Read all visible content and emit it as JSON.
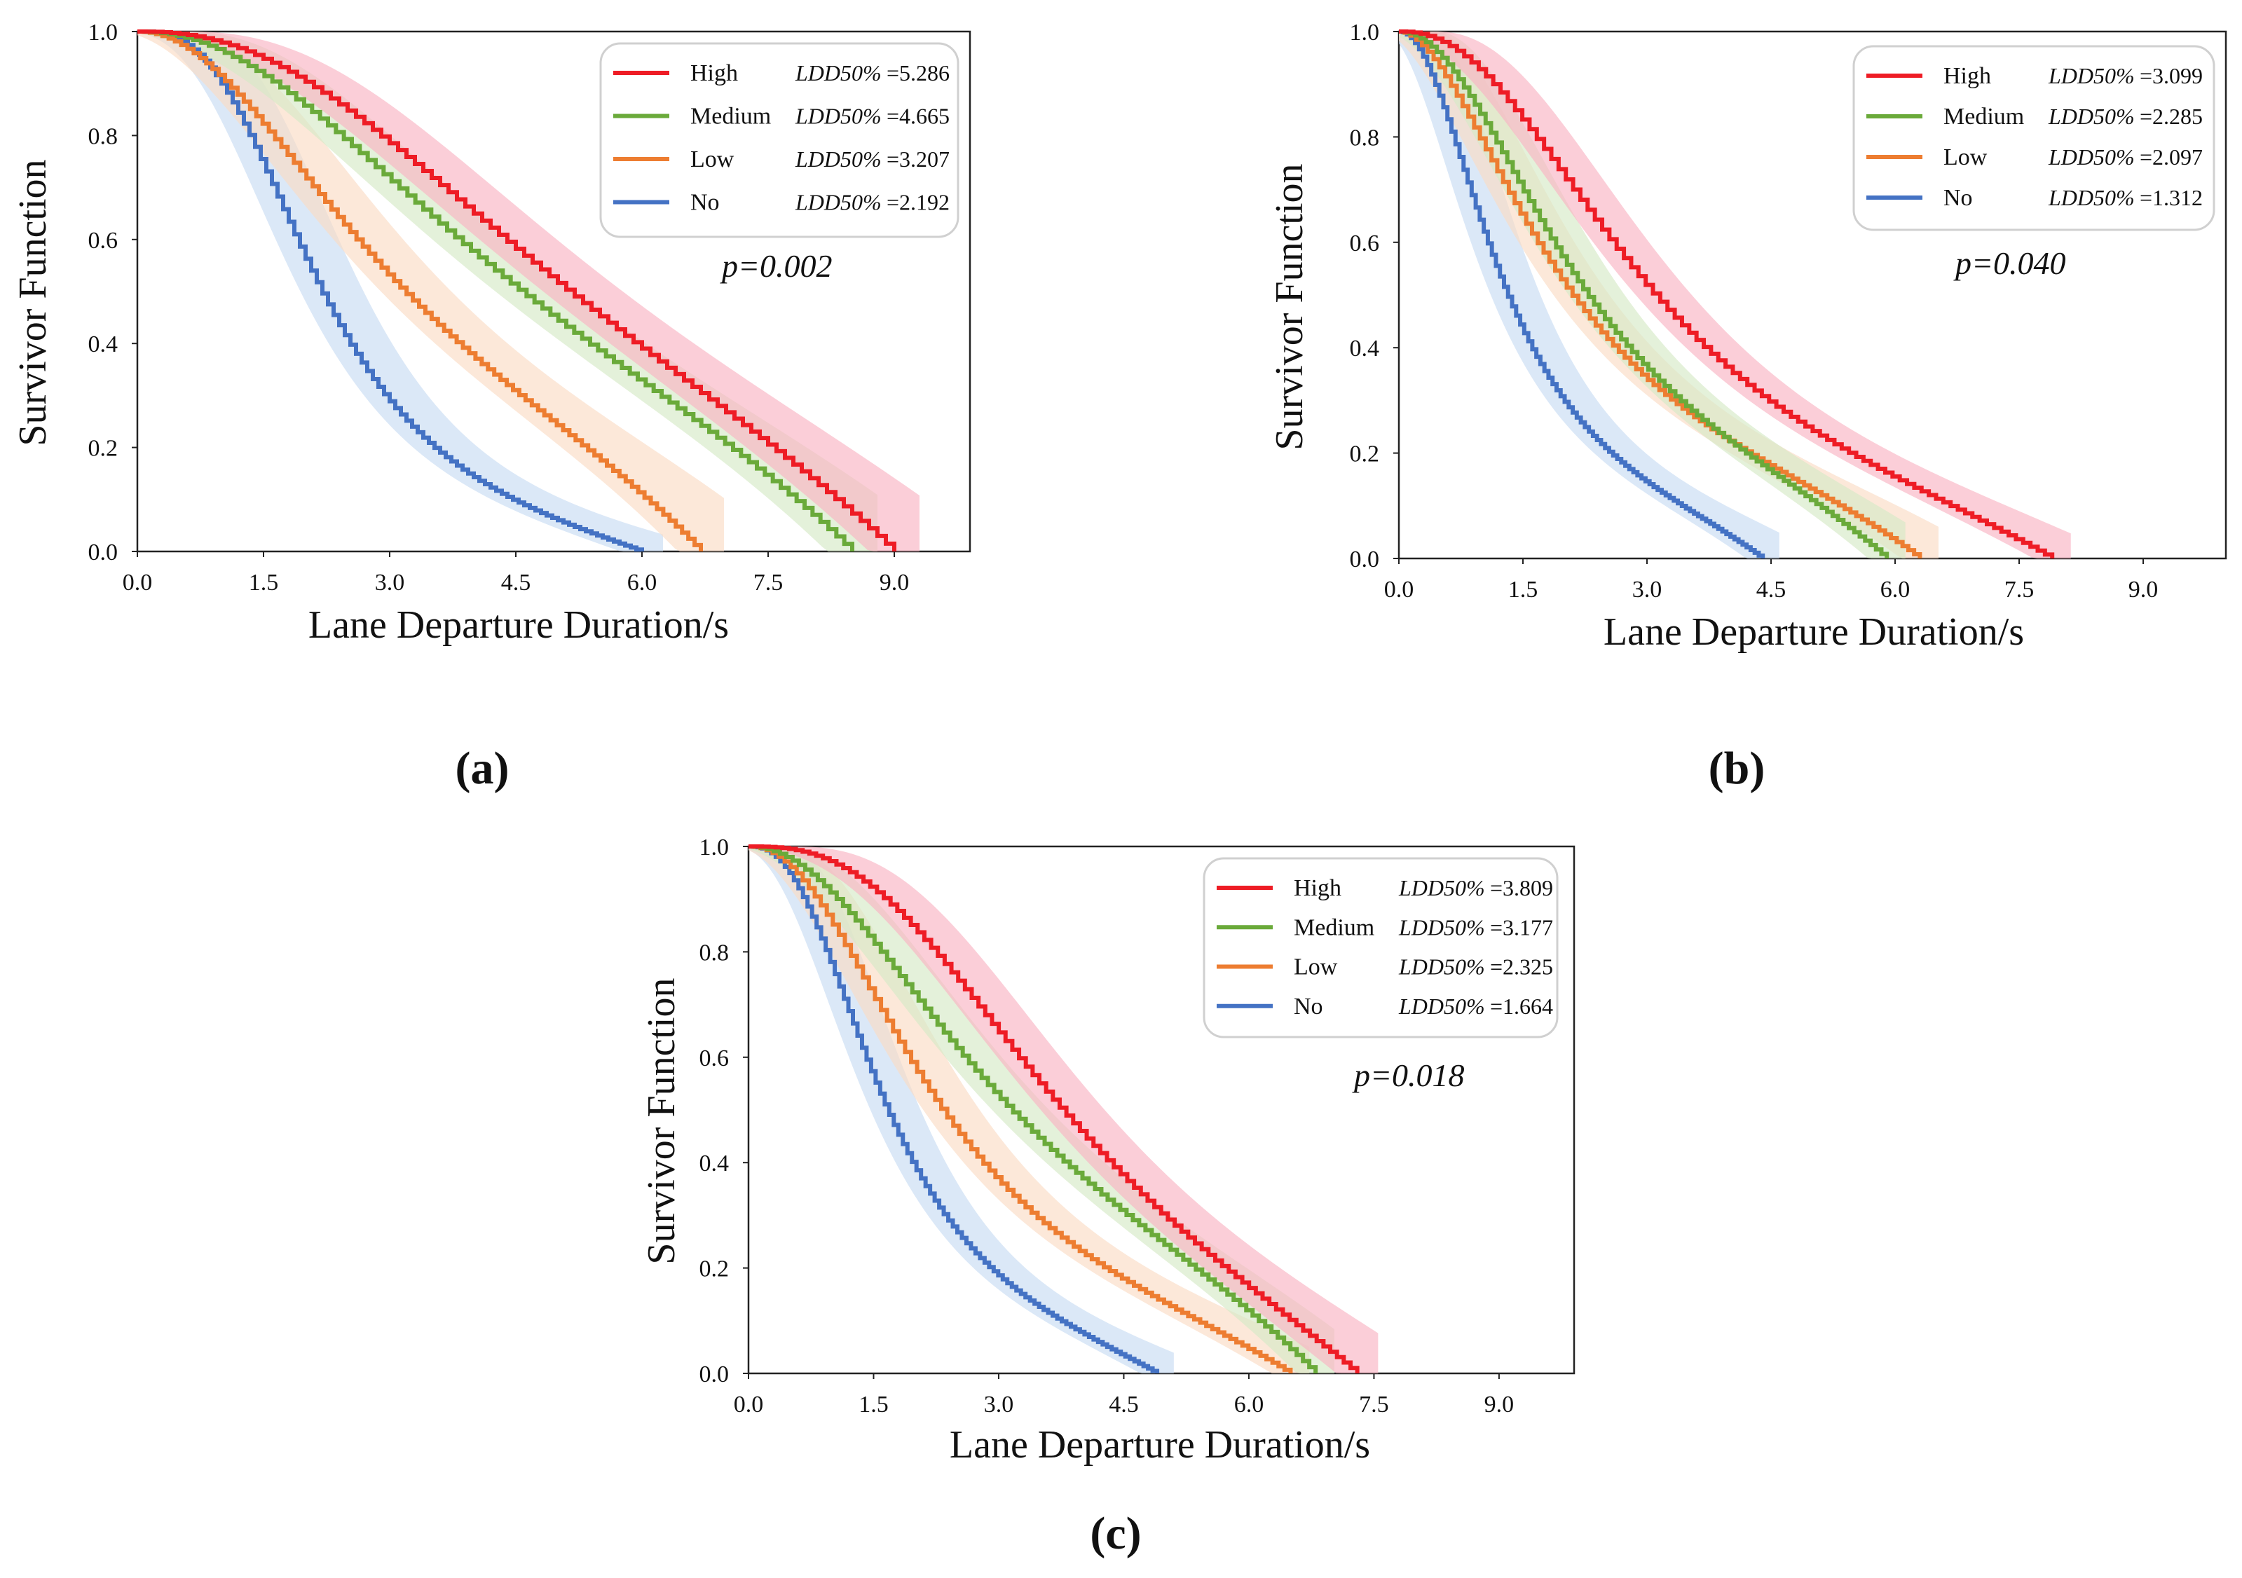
{
  "figure": {
    "x_ticks": [
      "0.0",
      "1.5",
      "3.0",
      "4.5",
      "6.0",
      "7.5",
      "9.0"
    ],
    "y_ticks": [
      "0.0",
      "0.2",
      "0.4",
      "0.6",
      "0.8",
      "1.0"
    ],
    "series_colors": {
      "High": "#ee1c25",
      "Medium": "#6aaa3a",
      "Low": "#ed7d31",
      "No": "#4472c4"
    },
    "band_colors": {
      "High": "#f9b3c3",
      "Medium": "#d6e9c6",
      "Low": "#fbdcc4",
      "No": "#c8dcf2"
    }
  },
  "chart_data": [
    {
      "panel_label": "(a)",
      "type": "line",
      "xlabel": "Lane Departure Duration/s",
      "ylabel": "Survivor Function",
      "xlim": [
        0,
        9.9
      ],
      "ylim": [
        0,
        1.0
      ],
      "p_value": "p=0.002",
      "series": [
        {
          "name": "High",
          "ldd_label": "LDD50%",
          "ldd_value": "=5.286",
          "median": 5.286,
          "end": 9.0,
          "steep": 2.3,
          "ci_width": 0.6
        },
        {
          "name": "Medium",
          "ldd_label": "LDD50%",
          "ldd_value": "=4.665",
          "median": 4.665,
          "end": 8.5,
          "steep": 2.1,
          "ci_width": 0.6
        },
        {
          "name": "Low",
          "ldd_label": "LDD50%",
          "ldd_value": "=3.207",
          "median": 3.207,
          "end": 6.7,
          "steep": 2.0,
          "ci_width": 0.55
        },
        {
          "name": "No",
          "ldd_label": "LDD50%",
          "ldd_value": "=2.192",
          "median": 2.192,
          "end": 6.0,
          "steep": 2.8,
          "ci_width": 0.5
        }
      ]
    },
    {
      "panel_label": "(b)",
      "type": "line",
      "xlabel": "Lane Departure Duration/s",
      "ylabel": "Survivor Function",
      "xlim": [
        0,
        10.0
      ],
      "ylim": [
        0,
        1.0
      ],
      "p_value": "p=0.040",
      "series": [
        {
          "name": "High",
          "ldd_label": "LDD50%",
          "ldd_value": "=3.099",
          "median": 3.099,
          "end": 7.9,
          "steep": 2.2,
          "ci_width": 0.45
        },
        {
          "name": "Medium",
          "ldd_label": "LDD50%",
          "ldd_value": "=2.285",
          "median": 2.285,
          "end": 5.9,
          "steep": 2.0,
          "ci_width": 0.45
        },
        {
          "name": "Low",
          "ldd_label": "LDD50%",
          "ldd_value": "=2.097",
          "median": 2.097,
          "end": 6.3,
          "steep": 1.8,
          "ci_width": 0.45
        },
        {
          "name": "No",
          "ldd_label": "LDD50%",
          "ldd_value": "=1.312",
          "median": 1.312,
          "end": 4.4,
          "steep": 2.0,
          "ci_width": 0.4
        }
      ]
    },
    {
      "panel_label": "(c)",
      "type": "line",
      "xlabel": "Lane Departure Duration/s",
      "ylabel": "Survivor Function",
      "xlim": [
        0,
        9.9
      ],
      "ylim": [
        0,
        1.0
      ],
      "p_value": "p=0.018",
      "series": [
        {
          "name": "High",
          "ldd_label": "LDD50%",
          "ldd_value": "=3.809",
          "median": 3.809,
          "end": 7.3,
          "steep": 2.6,
          "ci_width": 0.5
        },
        {
          "name": "Medium",
          "ldd_label": "LDD50%",
          "ldd_value": "=3.177",
          "median": 3.177,
          "end": 6.8,
          "steep": 2.0,
          "ci_width": 0.45
        },
        {
          "name": "Low",
          "ldd_label": "LDD50%",
          "ldd_value": "=2.325",
          "median": 2.325,
          "end": 6.5,
          "steep": 2.1,
          "ci_width": 0.45
        },
        {
          "name": "No",
          "ldd_label": "LDD50%",
          "ldd_value": "=1.664",
          "median": 1.664,
          "end": 4.9,
          "steep": 2.4,
          "ci_width": 0.4
        }
      ]
    }
  ]
}
